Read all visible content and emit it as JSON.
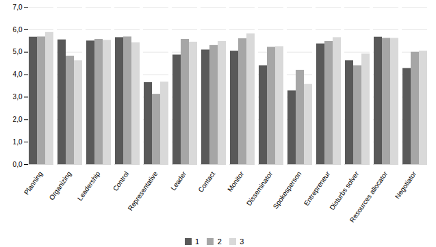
{
  "chart_data": {
    "type": "bar",
    "categories": [
      "Planning",
      "Organizing",
      "Leadership",
      "Control",
      "Representative",
      "Leader",
      "Contact",
      "Monitor",
      "Disseminator",
      "Spokesperson",
      "Entrepreneur",
      "Disturbs solver",
      "Resources allocator",
      "Negotiator"
    ],
    "series": [
      {
        "name": "1",
        "color": "#595959",
        "values": [
          5.67,
          5.55,
          5.5,
          5.65,
          3.65,
          4.88,
          5.1,
          5.05,
          4.4,
          3.28,
          5.37,
          4.62,
          5.67,
          4.28
        ]
      },
      {
        "name": "2",
        "color": "#a6a6a6",
        "values": [
          5.68,
          4.82,
          5.57,
          5.68,
          3.13,
          5.57,
          5.3,
          5.6,
          5.22,
          4.2,
          5.48,
          4.4,
          5.62,
          5.0
        ]
      },
      {
        "name": "3",
        "color": "#d9d9d9",
        "values": [
          5.88,
          4.62,
          5.53,
          5.42,
          3.67,
          5.45,
          5.48,
          5.82,
          5.25,
          3.57,
          5.65,
          4.92,
          5.62,
          5.05
        ]
      }
    ],
    "ylim": [
      0,
      7
    ],
    "yticks": [
      {
        "value": 0,
        "label": "0,0"
      },
      {
        "value": 1,
        "label": "1,0"
      },
      {
        "value": 2,
        "label": "2,0"
      },
      {
        "value": 3,
        "label": "3,0"
      },
      {
        "value": 4,
        "label": "4,0"
      },
      {
        "value": 5,
        "label": "5,0"
      },
      {
        "value": 6,
        "label": "6,0"
      },
      {
        "value": 7,
        "label": "7,0"
      }
    ],
    "grid": true,
    "legend": "bottom"
  }
}
